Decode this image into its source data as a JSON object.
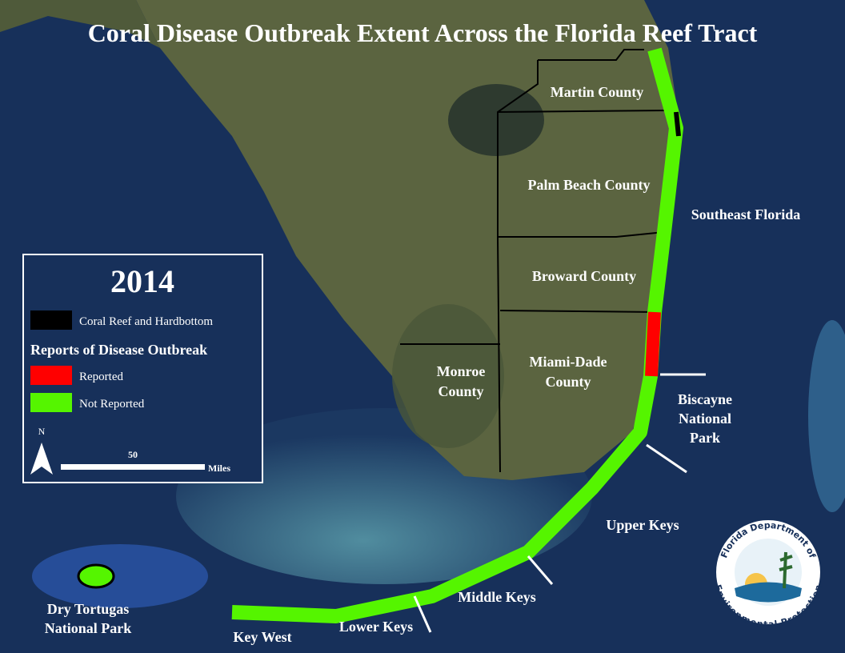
{
  "title": "Coral Disease Outbreak Extent Across the Florida Reef Tract",
  "labels": [
    [
      "Martin County"
    ],
    [
      "Palm Beach County"
    ],
    [
      "Southeast Florida"
    ],
    [
      "Broward County"
    ],
    [
      "Monroe",
      "County"
    ],
    [
      "Miami-Dade",
      "County"
    ],
    [
      "Biscayne",
      "National",
      "Park"
    ],
    [
      "Upper Keys"
    ],
    [
      "Middle Keys"
    ],
    [
      "Lower Keys"
    ],
    [
      "Key West"
    ],
    [
      "Dry Tortugas",
      "National Park"
    ]
  ],
  "legend": {
    "year": "2014",
    "habitat": "Coral Reef and Hardbottom",
    "section_title": "Reports of Disease Outbreak",
    "items": [
      "Reported",
      "Not Reported"
    ],
    "north": "N",
    "scale_value": "50",
    "scale_unit": "Miles"
  },
  "logo": {
    "top": "Florida Department of",
    "bottom": "Environmental Protection"
  }
}
